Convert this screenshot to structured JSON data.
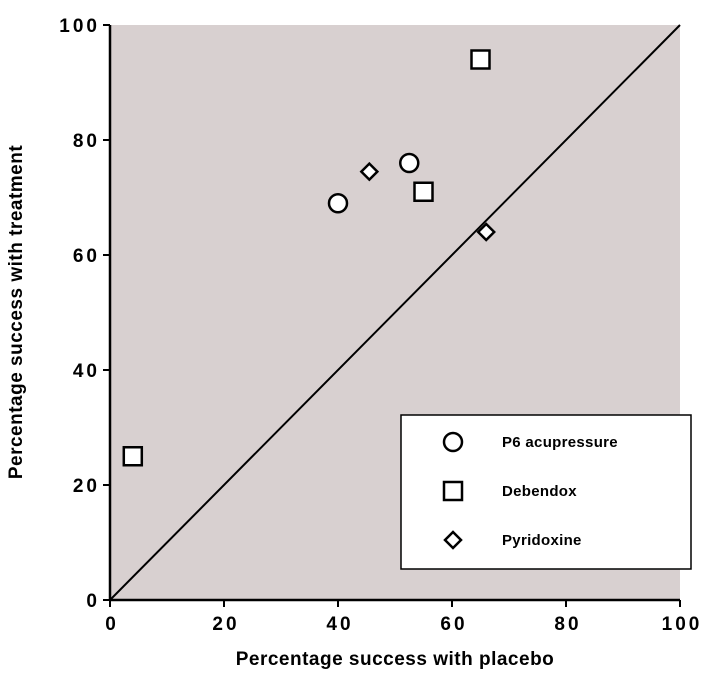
{
  "chart_data": {
    "type": "scatter",
    "xlabel": "Percentage success with placebo",
    "ylabel": "Percentage success with treatment",
    "xlim": [
      0,
      100
    ],
    "ylim": [
      0,
      100
    ],
    "x_ticks": [
      "0",
      "20",
      "40",
      "60",
      "80",
      "100"
    ],
    "y_ticks": [
      "0",
      "20",
      "40",
      "60",
      "80",
      "100"
    ],
    "background_color": "#d8d0d0",
    "reference_line": {
      "type": "identity",
      "from": [
        0,
        0
      ],
      "to": [
        100,
        100
      ]
    },
    "legend_position": "bottom-right",
    "series": [
      {
        "name": "P6 acupressure",
        "marker": "circle",
        "points": [
          [
            40,
            69
          ],
          [
            52.5,
            76
          ]
        ]
      },
      {
        "name": "Debendox",
        "marker": "square",
        "points": [
          [
            4,
            25
          ],
          [
            55,
            71
          ],
          [
            65,
            94
          ]
        ]
      },
      {
        "name": "Pyridoxine",
        "marker": "diamond",
        "points": [
          [
            45.5,
            74.5
          ],
          [
            66,
            64
          ]
        ]
      }
    ]
  }
}
